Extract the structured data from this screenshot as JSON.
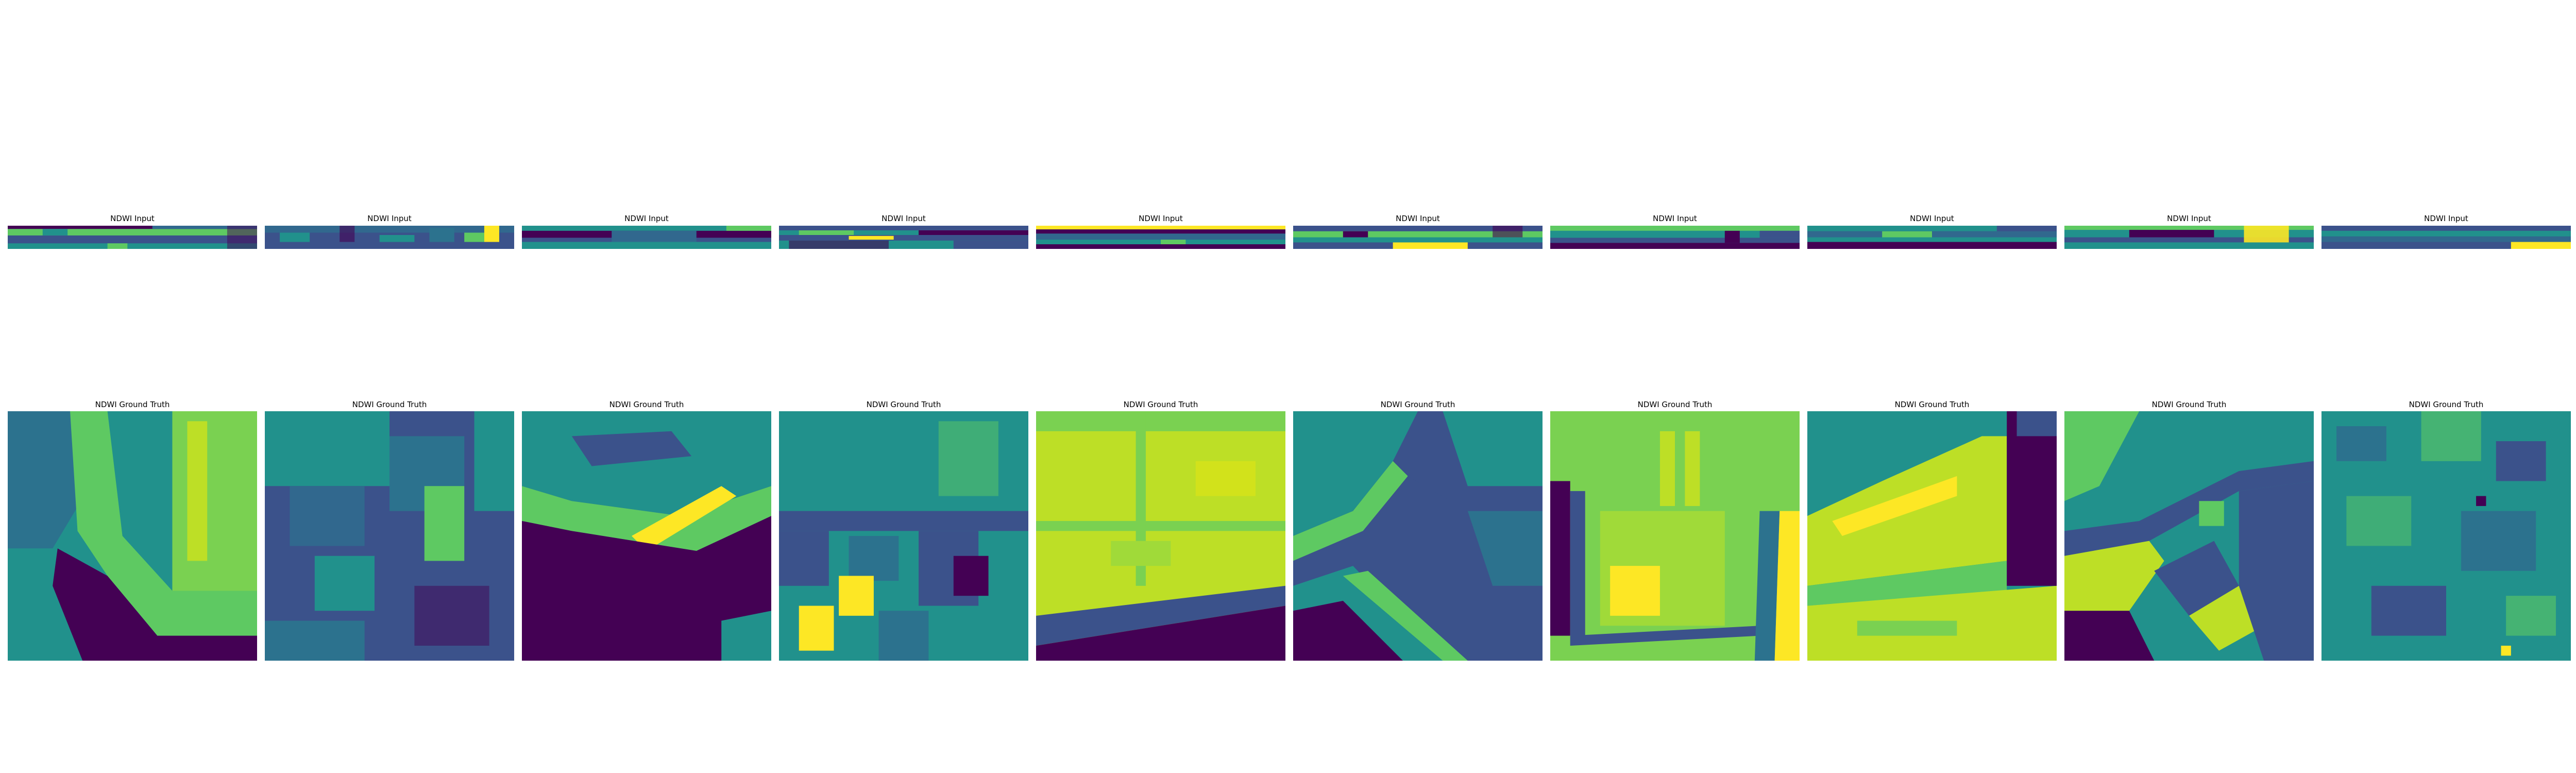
{
  "figure": {
    "colormap": "viridis",
    "colormap_stops": [
      "#440154",
      "#3b528b",
      "#21918c",
      "#5ec962",
      "#fde725"
    ],
    "rows": [
      {
        "name": "input",
        "panels": [
          {
            "title": "NDWI Input"
          },
          {
            "title": "NDWI Input"
          },
          {
            "title": "NDWI Input"
          },
          {
            "title": "NDWI Input"
          },
          {
            "title": "NDWI Input"
          },
          {
            "title": "NDWI Input"
          },
          {
            "title": "NDWI Input"
          },
          {
            "title": "NDWI Input"
          },
          {
            "title": "NDWI Input"
          },
          {
            "title": "NDWI Input"
          }
        ]
      },
      {
        "name": "ground-truth",
        "panels": [
          {
            "title": "NDWI Ground Truth"
          },
          {
            "title": "NDWI Ground Truth"
          },
          {
            "title": "NDWI Ground Truth"
          },
          {
            "title": "NDWI Ground Truth"
          },
          {
            "title": "NDWI Ground Truth"
          },
          {
            "title": "NDWI Ground Truth"
          },
          {
            "title": "NDWI Ground Truth"
          },
          {
            "title": "NDWI Ground Truth"
          },
          {
            "title": "NDWI Ground Truth"
          },
          {
            "title": "NDWI Ground Truth"
          }
        ]
      }
    ]
  }
}
